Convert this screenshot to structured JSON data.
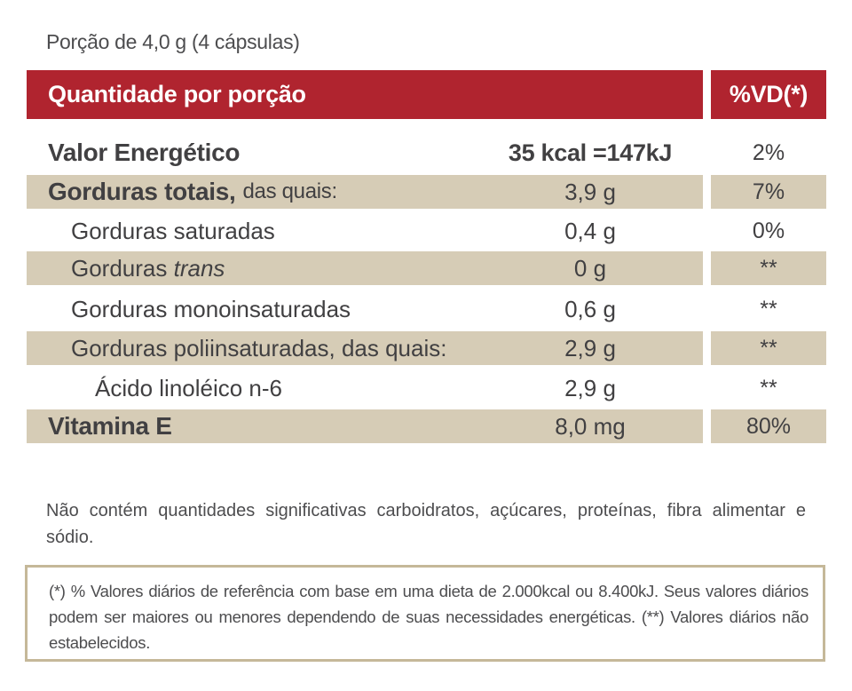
{
  "portion": "Porção de 4,0 g (4 cápsulas)",
  "header": {
    "quantity_label": "Quantidade por porção",
    "dv_label": "%VD(*)"
  },
  "rows": [
    {
      "name": "Valor Energético",
      "suffix": "",
      "amount": "35 kcal =147kJ",
      "dv": "2%"
    },
    {
      "name": "Gorduras totais,",
      "suffix": "das quais:",
      "amount": "3,9 g",
      "dv": "7%"
    },
    {
      "name": "Gorduras saturadas",
      "suffix": "",
      "amount": "0,4 g",
      "dv": "0%"
    },
    {
      "name": "Gorduras",
      "italic": "trans",
      "amount": "0 g",
      "dv": "**"
    },
    {
      "name": "Gorduras monoinsaturadas",
      "suffix": "",
      "amount": "0,6 g",
      "dv": "**"
    },
    {
      "name": "Gorduras poliinsaturadas, das quais:",
      "suffix": "",
      "amount": "2,9 g",
      "dv": "**"
    },
    {
      "name": "Ácido linoléico n-6",
      "suffix": "",
      "amount": "2,9 g",
      "dv": "**"
    },
    {
      "name": "Vitamina E",
      "suffix": "",
      "amount": "8,0 mg",
      "dv": "80%"
    }
  ],
  "note": "Não contém quantidades significativas carboidratos, açúcares, proteínas, fibra alimentar e sódio.",
  "footnote": "(*) % Valores diários de referência com base em uma dieta de 2.000kcal ou 8.400kJ. Seus valores diários podem ser maiores ou menores dependendo de suas necessidades energéticas. (**) Valores diários não estabelecidos.",
  "colors": {
    "header_red": "#b0242f",
    "row_shade": "#d6ccb6",
    "border": "#c5b899",
    "text": "#414042"
  }
}
